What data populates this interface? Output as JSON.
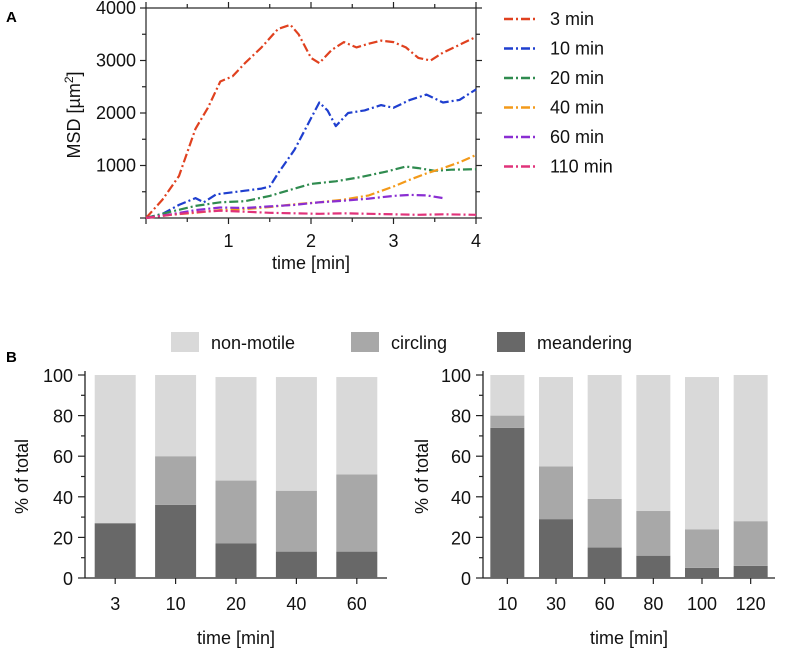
{
  "panel_a_label": "A",
  "panel_b_label": "B",
  "chart_data": [
    {
      "type": "line",
      "id": "msd",
      "xlabel": "time [min]",
      "ylabel": "MSD [µm",
      "ylabel_sup": "2",
      "ylabel_end": "]",
      "xlim": [
        0,
        4
      ],
      "ylim": [
        0,
        4000
      ],
      "xticks": [
        1,
        2,
        3,
        4
      ],
      "yticks": [
        1000,
        2000,
        3000,
        4000
      ],
      "series": [
        {
          "name": "3 min",
          "color": "#e0411f",
          "x": [
            0,
            0.2,
            0.4,
            0.6,
            0.75,
            0.9,
            1.05,
            1.2,
            1.4,
            1.6,
            1.75,
            1.85,
            2.0,
            2.1,
            2.25,
            2.4,
            2.55,
            2.7,
            2.85,
            3.0,
            3.15,
            3.3,
            3.45,
            3.6,
            3.8,
            4.0
          ],
          "y": [
            0,
            350,
            800,
            1700,
            2100,
            2600,
            2700,
            2950,
            3250,
            3600,
            3680,
            3500,
            3050,
            2950,
            3200,
            3350,
            3250,
            3320,
            3380,
            3350,
            3250,
            3050,
            3000,
            3150,
            3300,
            3450
          ]
        },
        {
          "name": "10 min",
          "color": "#1f3fcf",
          "x": [
            0,
            0.2,
            0.4,
            0.6,
            0.7,
            0.85,
            1.0,
            1.2,
            1.4,
            1.5,
            1.6,
            1.8,
            2.0,
            2.1,
            2.2,
            2.3,
            2.45,
            2.65,
            2.85,
            3.0,
            3.2,
            3.4,
            3.6,
            3.8,
            4.0
          ],
          "y": [
            0,
            80,
            250,
            380,
            300,
            450,
            480,
            520,
            560,
            600,
            850,
            1300,
            1900,
            2200,
            2050,
            1750,
            2000,
            2050,
            2150,
            2100,
            2250,
            2350,
            2200,
            2250,
            2450
          ]
        },
        {
          "name": "20 min",
          "color": "#2f8b4f",
          "x": [
            0,
            0.3,
            0.6,
            0.9,
            1.2,
            1.5,
            1.8,
            2.0,
            2.3,
            2.6,
            2.9,
            3.15,
            3.3,
            3.5,
            3.7,
            4.0
          ],
          "y": [
            0,
            120,
            230,
            300,
            320,
            420,
            560,
            650,
            700,
            780,
            880,
            980,
            950,
            900,
            920,
            930
          ]
        },
        {
          "name": "40 min",
          "color": "#f39a1a",
          "x": [
            0,
            0.3,
            0.6,
            0.9,
            1.2,
            1.5,
            1.8,
            2.1,
            2.4,
            2.7,
            3.0,
            3.2,
            3.4,
            3.6,
            3.8,
            4.0
          ],
          "y": [
            0,
            60,
            100,
            150,
            170,
            210,
            260,
            300,
            350,
            430,
            600,
            730,
            850,
            950,
            1060,
            1200
          ]
        },
        {
          "name": "60 min",
          "color": "#8a2ed2",
          "x": [
            0,
            0.3,
            0.6,
            0.9,
            1.2,
            1.5,
            1.8,
            2.1,
            2.4,
            2.7,
            3.0,
            3.2,
            3.4,
            3.6
          ],
          "y": [
            0,
            70,
            150,
            200,
            190,
            220,
            250,
            300,
            330,
            370,
            420,
            440,
            430,
            380
          ]
        },
        {
          "name": "110 min",
          "color": "#e0337a",
          "x": [
            0,
            0.3,
            0.6,
            0.9,
            1.2,
            1.5,
            1.8,
            2.1,
            2.4,
            2.7,
            3.0,
            3.3,
            3.6,
            4.0
          ],
          "y": [
            0,
            60,
            110,
            140,
            120,
            100,
            90,
            80,
            90,
            80,
            70,
            60,
            70,
            60
          ]
        }
      ]
    },
    {
      "type": "bar",
      "stacked": true,
      "id": "bars-left",
      "xlabel": "time [min]",
      "ylabel": "% of total",
      "ylim": [
        0,
        100
      ],
      "yticks": [
        0,
        20,
        40,
        60,
        80,
        100
      ],
      "categories": [
        "3",
        "10",
        "20",
        "40",
        "60"
      ],
      "series": [
        {
          "name": "meandering",
          "color": "#686868",
          "values": [
            27,
            36,
            17,
            13,
            13
          ]
        },
        {
          "name": "circling",
          "color": "#a8a8a8",
          "values": [
            0,
            24,
            31,
            30,
            38
          ]
        },
        {
          "name": "non-motile",
          "color": "#d9d9d9",
          "values": [
            73,
            40,
            51,
            56,
            48
          ]
        }
      ]
    },
    {
      "type": "bar",
      "stacked": true,
      "id": "bars-right",
      "xlabel": "time [min]",
      "ylabel": "% of total",
      "ylim": [
        0,
        100
      ],
      "yticks": [
        0,
        20,
        40,
        60,
        80,
        100
      ],
      "categories": [
        "10",
        "30",
        "60",
        "80",
        "100",
        "120"
      ],
      "series": [
        {
          "name": "meandering",
          "color": "#686868",
          "values": [
            74,
            29,
            15,
            11,
            5,
            6
          ]
        },
        {
          "name": "circling",
          "color": "#a8a8a8",
          "values": [
            6,
            26,
            24,
            22,
            19,
            22
          ]
        },
        {
          "name": "non-motile",
          "color": "#d9d9d9",
          "values": [
            20,
            44,
            61,
            67,
            75,
            72
          ]
        }
      ]
    }
  ],
  "bar_legend": [
    {
      "name": "non-motile",
      "color": "#d9d9d9"
    },
    {
      "name": "circling",
      "color": "#a8a8a8"
    },
    {
      "name": "meandering",
      "color": "#686868"
    }
  ]
}
